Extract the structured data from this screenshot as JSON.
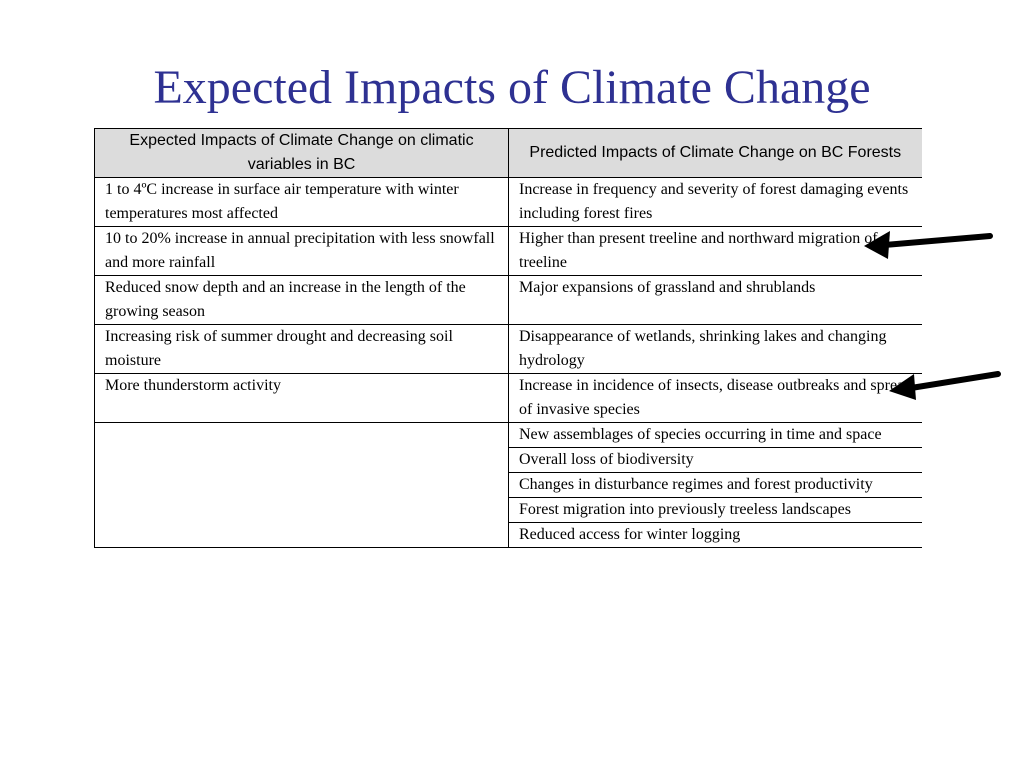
{
  "slide": {
    "title": "Expected Impacts of Climate Change"
  },
  "table": {
    "headers": [
      "Expected Impacts of Climate Change  on climatic variables in BC",
      "Predicted Impacts of Climate Change on BC Forests"
    ],
    "paired_rows": [
      {
        "left": "1 to 4ºC increase in surface air temperature with winter temperatures most affected",
        "right": "Increase in frequency and severity of forest damaging events including forest fires"
      },
      {
        "left": "10 to 20% increase in annual precipitation with less snowfall and more rainfall",
        "right": "Higher than present treeline and northward migration of treeline"
      },
      {
        "left": "Reduced snow depth and an increase in the length of the growing season",
        "right": "Major expansions of grassland and shrublands"
      },
      {
        "left": "Increasing risk of summer drought and decreasing soil moisture",
        "right": "Disappearance of wetlands, shrinking lakes and changing hydrology"
      },
      {
        "left": "More thunderstorm activity",
        "right": "Increase in incidence of insects, disease outbreaks and spread of invasive species"
      }
    ],
    "extra_right": [
      "New assemblages of species occurring in time and space",
      "Overall loss of biodiversity",
      "Changes in disturbance regimes and forest productivity",
      "Forest migration into previously treeless landscapes",
      "Reduced access for winter logging"
    ]
  },
  "annotations": {
    "arrow_color": "#000000",
    "arrows": [
      {
        "icon": "left-arrow-icon",
        "points_to": "Higher than present treeline and northward migration of treeline"
      },
      {
        "icon": "left-arrow-icon",
        "points_to": "Increase in incidence of insects, disease outbreaks and spread of invasive species"
      }
    ]
  }
}
